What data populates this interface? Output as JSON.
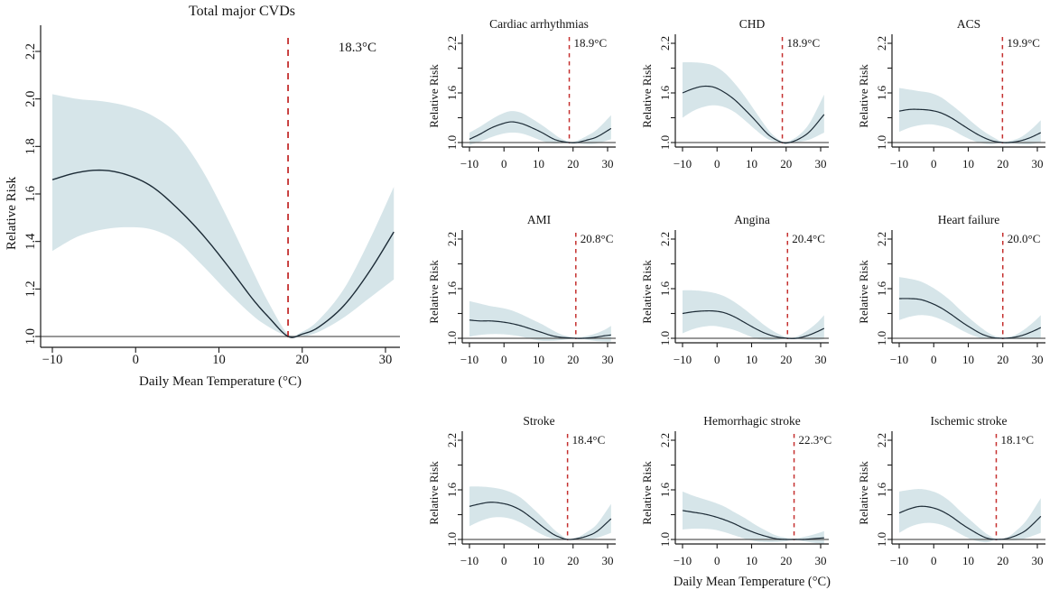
{
  "figure": {
    "xlabel": "Daily Mean Temperature (°C)",
    "ylabel": "Relative Risk",
    "colors": {
      "band": "#d6e5e9",
      "curve": "#1c2b36",
      "mmt_line": "#c5302f",
      "axis": "#1a1a1a",
      "ref_line": "#5a5a5a",
      "text": "#141414"
    },
    "x_ticks": [
      -10,
      0,
      10,
      20,
      30
    ]
  },
  "chart_data": [
    {
      "type": "line",
      "size": "large",
      "title": "Total major CVDs",
      "mmt": 18.3,
      "mmt_label": "18.3°C",
      "xlabel": "Daily Mean Temperature (°C)",
      "ylabel": "Relative Risk",
      "x_ticks": [
        -10,
        0,
        10,
        20,
        30
      ],
      "y_ticks": [
        1.0,
        1.2,
        1.4,
        1.6,
        1.8,
        2.0,
        2.2
      ],
      "y_tick_labels": [
        1.0,
        1.2,
        1.4,
        1.6,
        1.8,
        2.0,
        2.2
      ],
      "ylim": [
        1.0,
        2.2
      ],
      "x": [
        -10,
        -7,
        -4,
        -1,
        2,
        5,
        8,
        11,
        14,
        16,
        18.3,
        20,
        22,
        25,
        28,
        31
      ],
      "rr": [
        1.66,
        1.69,
        1.7,
        1.68,
        1.63,
        1.54,
        1.43,
        1.3,
        1.16,
        1.08,
        1.0,
        1.01,
        1.04,
        1.13,
        1.27,
        1.44
      ],
      "lower": [
        1.36,
        1.42,
        1.45,
        1.46,
        1.45,
        1.4,
        1.3,
        1.19,
        1.09,
        1.04,
        1.0,
        1.0,
        1.02,
        1.08,
        1.16,
        1.24
      ],
      "upper": [
        2.02,
        2.0,
        1.99,
        1.97,
        1.93,
        1.85,
        1.7,
        1.5,
        1.28,
        1.14,
        1.01,
        1.02,
        1.07,
        1.2,
        1.4,
        1.63
      ]
    },
    {
      "type": "line",
      "size": "small",
      "title": "Cardiac arrhythmias",
      "mmt": 18.9,
      "mmt_label": "18.9°C",
      "ylabel": "Relative Risk",
      "x_ticks": [
        -10,
        0,
        10,
        20,
        30
      ],
      "y_ticks": [
        1.0,
        1.3,
        1.6,
        1.9,
        2.2
      ],
      "y_tick_labels": [
        1.0,
        1.6,
        2.2
      ],
      "ylim": [
        1.0,
        2.2
      ],
      "x": [
        -10,
        -7,
        -4,
        -1,
        2,
        5,
        8,
        11,
        14,
        16,
        18.9,
        21,
        24,
        27,
        31
      ],
      "rr": [
        1.04,
        1.1,
        1.17,
        1.22,
        1.25,
        1.23,
        1.18,
        1.12,
        1.05,
        1.02,
        1.0,
        1.0,
        1.03,
        1.07,
        1.17
      ],
      "lower": [
        0.97,
        1.01,
        1.06,
        1.1,
        1.12,
        1.11,
        1.07,
        1.02,
        0.99,
        0.99,
        1.0,
        0.99,
        0.98,
        0.99,
        1.04
      ],
      "upper": [
        1.12,
        1.19,
        1.27,
        1.34,
        1.38,
        1.36,
        1.29,
        1.21,
        1.12,
        1.06,
        1.01,
        1.02,
        1.08,
        1.16,
        1.33
      ]
    },
    {
      "type": "line",
      "size": "small",
      "title": "CHD",
      "mmt": 18.9,
      "mmt_label": "18.9°C",
      "ylabel": "Relative Risk",
      "x_ticks": [
        -10,
        0,
        10,
        20,
        30
      ],
      "y_ticks": [
        1.0,
        1.3,
        1.6,
        1.9,
        2.2
      ],
      "y_tick_labels": [
        1.0,
        1.6,
        2.2
      ],
      "ylim": [
        1.0,
        2.2
      ],
      "x": [
        -10,
        -7,
        -4,
        -1,
        2,
        5,
        8,
        11,
        14,
        16,
        18.9,
        21,
        24,
        27,
        31
      ],
      "rr": [
        1.6,
        1.65,
        1.68,
        1.67,
        1.61,
        1.52,
        1.4,
        1.27,
        1.13,
        1.06,
        1.0,
        1.0,
        1.05,
        1.14,
        1.34
      ],
      "lower": [
        1.3,
        1.38,
        1.43,
        1.45,
        1.43,
        1.37,
        1.27,
        1.16,
        1.06,
        1.02,
        1.0,
        1.0,
        1.01,
        1.04,
        1.12
      ],
      "upper": [
        1.97,
        1.97,
        1.96,
        1.93,
        1.85,
        1.72,
        1.56,
        1.38,
        1.2,
        1.1,
        1.01,
        1.02,
        1.1,
        1.25,
        1.58
      ]
    },
    {
      "type": "line",
      "size": "small",
      "title": "ACS",
      "mmt": 19.9,
      "mmt_label": "19.9°C",
      "ylabel": "Relative Risk",
      "x_ticks": [
        -10,
        0,
        10,
        20,
        30
      ],
      "y_ticks": [
        1.0,
        1.3,
        1.6,
        1.9,
        2.2
      ],
      "y_tick_labels": [
        1.0,
        1.6,
        2.2
      ],
      "ylim": [
        1.0,
        2.2
      ],
      "x": [
        -10,
        -7,
        -4,
        -1,
        2,
        5,
        8,
        11,
        14,
        17,
        19.9,
        22,
        25,
        28,
        31
      ],
      "rr": [
        1.38,
        1.4,
        1.4,
        1.39,
        1.36,
        1.3,
        1.22,
        1.14,
        1.07,
        1.02,
        1.0,
        1.0,
        1.02,
        1.06,
        1.12
      ],
      "lower": [
        1.13,
        1.18,
        1.21,
        1.22,
        1.2,
        1.16,
        1.09,
        1.03,
        0.99,
        0.98,
        1.0,
        0.99,
        0.98,
        0.98,
        1.0
      ],
      "upper": [
        1.66,
        1.64,
        1.62,
        1.6,
        1.55,
        1.46,
        1.36,
        1.25,
        1.15,
        1.07,
        1.01,
        1.02,
        1.06,
        1.15,
        1.27
      ]
    },
    {
      "type": "line",
      "size": "small",
      "title": "AMI",
      "mmt": 20.8,
      "mmt_label": "20.8°C",
      "ylabel": "Relative Risk",
      "x_ticks": [
        -10,
        0,
        10,
        20,
        30
      ],
      "y_ticks": [
        1.0,
        1.3,
        1.6,
        1.9,
        2.2
      ],
      "y_tick_labels": [
        1.0,
        1.6,
        2.2
      ],
      "ylim": [
        1.0,
        2.2
      ],
      "x": [
        -10,
        -7,
        -4,
        -1,
        2,
        5,
        8,
        11,
        14,
        17,
        20.8,
        23,
        26,
        29,
        31
      ],
      "rr": [
        1.22,
        1.21,
        1.21,
        1.2,
        1.18,
        1.15,
        1.11,
        1.07,
        1.03,
        1.01,
        1.0,
        1.0,
        1.01,
        1.03,
        1.04
      ],
      "lower": [
        1.02,
        1.04,
        1.05,
        1.05,
        1.04,
        1.02,
        0.99,
        0.97,
        0.97,
        0.98,
        1.0,
        0.99,
        0.97,
        0.96,
        0.96
      ],
      "upper": [
        1.45,
        1.42,
        1.39,
        1.37,
        1.34,
        1.29,
        1.23,
        1.17,
        1.1,
        1.04,
        1.01,
        1.02,
        1.05,
        1.1,
        1.15
      ]
    },
    {
      "type": "line",
      "size": "small",
      "title": "Angina",
      "mmt": 20.4,
      "mmt_label": "20.4°C",
      "ylabel": "Relative Risk",
      "x_ticks": [
        -10,
        0,
        10,
        20,
        30
      ],
      "y_ticks": [
        1.0,
        1.3,
        1.6,
        1.9,
        2.2
      ],
      "y_tick_labels": [
        1.0,
        1.6,
        2.2
      ],
      "ylim": [
        1.0,
        2.2
      ],
      "x": [
        -10,
        -7,
        -4,
        -1,
        2,
        5,
        8,
        11,
        14,
        17,
        20.4,
        23,
        26,
        29,
        31
      ],
      "rr": [
        1.3,
        1.32,
        1.33,
        1.33,
        1.31,
        1.26,
        1.19,
        1.12,
        1.06,
        1.02,
        1.0,
        1.0,
        1.03,
        1.08,
        1.12
      ],
      "lower": [
        1.06,
        1.11,
        1.14,
        1.15,
        1.13,
        1.1,
        1.05,
        1.0,
        0.98,
        0.98,
        1.0,
        0.99,
        0.98,
        0.98,
        0.99
      ],
      "upper": [
        1.58,
        1.58,
        1.57,
        1.55,
        1.51,
        1.44,
        1.35,
        1.25,
        1.15,
        1.07,
        1.01,
        1.02,
        1.09,
        1.19,
        1.28
      ]
    },
    {
      "type": "line",
      "size": "small",
      "title": "Heart failure",
      "mmt": 20.0,
      "mmt_label": "20.0°C",
      "ylabel": "Relative Risk",
      "x_ticks": [
        -10,
        0,
        10,
        20,
        30
      ],
      "y_ticks": [
        1.0,
        1.3,
        1.6,
        1.9,
        2.2
      ],
      "y_tick_labels": [
        1.0,
        1.6,
        2.2
      ],
      "ylim": [
        1.0,
        2.2
      ],
      "x": [
        -10,
        -7,
        -4,
        -1,
        2,
        5,
        8,
        11,
        14,
        17,
        20,
        23,
        26,
        29,
        31
      ],
      "rr": [
        1.48,
        1.48,
        1.47,
        1.43,
        1.37,
        1.29,
        1.2,
        1.12,
        1.05,
        1.01,
        1.0,
        1.01,
        1.04,
        1.09,
        1.13
      ],
      "lower": [
        1.22,
        1.26,
        1.28,
        1.27,
        1.23,
        1.17,
        1.1,
        1.04,
        1.0,
        0.99,
        1.0,
        0.99,
        0.99,
        1.0,
        1.0
      ],
      "upper": [
        1.74,
        1.72,
        1.69,
        1.63,
        1.55,
        1.45,
        1.33,
        1.22,
        1.12,
        1.04,
        1.01,
        1.03,
        1.1,
        1.2,
        1.28
      ]
    },
    {
      "type": "line",
      "size": "small",
      "title": "Stroke",
      "mmt": 18.4,
      "mmt_label": "18.4°C",
      "ylabel": "Relative Risk",
      "x_ticks": [
        -10,
        0,
        10,
        20,
        30
      ],
      "y_ticks": [
        1.0,
        1.3,
        1.6,
        1.9,
        2.2
      ],
      "y_tick_labels": [
        1.0,
        1.6,
        2.2
      ],
      "ylim": [
        1.0,
        2.2
      ],
      "x": [
        -10,
        -7,
        -4,
        -1,
        2,
        5,
        8,
        11,
        14,
        16,
        18.4,
        21,
        24,
        27,
        31
      ],
      "rr": [
        1.4,
        1.43,
        1.45,
        1.44,
        1.41,
        1.35,
        1.26,
        1.16,
        1.07,
        1.03,
        1.0,
        1.01,
        1.04,
        1.1,
        1.25
      ],
      "lower": [
        1.16,
        1.22,
        1.26,
        1.27,
        1.25,
        1.2,
        1.13,
        1.06,
        1.01,
        0.99,
        1.0,
        1.0,
        1.0,
        1.02,
        1.08
      ],
      "upper": [
        1.64,
        1.64,
        1.63,
        1.61,
        1.57,
        1.5,
        1.39,
        1.27,
        1.14,
        1.07,
        1.01,
        1.02,
        1.09,
        1.19,
        1.43
      ]
    },
    {
      "type": "line",
      "size": "small",
      "title": "Hemorrhagic stroke",
      "mmt": 22.3,
      "mmt_label": "22.3°C",
      "ylabel": "Relative Risk",
      "x_ticks": [
        -10,
        0,
        10,
        20,
        30
      ],
      "y_ticks": [
        1.0,
        1.3,
        1.6,
        1.9,
        2.2
      ],
      "y_tick_labels": [
        1.0,
        1.6,
        2.2
      ],
      "ylim": [
        1.0,
        2.2
      ],
      "x": [
        -10,
        -7,
        -4,
        -1,
        2,
        5,
        8,
        11,
        14,
        17,
        20,
        22.3,
        25,
        28,
        31
      ],
      "rr": [
        1.35,
        1.33,
        1.31,
        1.28,
        1.24,
        1.19,
        1.13,
        1.08,
        1.04,
        1.01,
        1.0,
        1.0,
        1.0,
        1.01,
        1.02
      ],
      "lower": [
        1.12,
        1.13,
        1.13,
        1.12,
        1.09,
        1.05,
        1.01,
        0.98,
        0.97,
        0.97,
        0.98,
        1.0,
        0.98,
        0.96,
        0.95
      ],
      "upper": [
        1.58,
        1.53,
        1.49,
        1.45,
        1.4,
        1.33,
        1.26,
        1.18,
        1.11,
        1.05,
        1.02,
        1.01,
        1.03,
        1.06,
        1.1
      ]
    },
    {
      "type": "line",
      "size": "small",
      "title": "Ischemic stroke",
      "mmt": 18.1,
      "mmt_label": "18.1°C",
      "ylabel": "Relative Risk",
      "x_ticks": [
        -10,
        0,
        10,
        20,
        30
      ],
      "y_ticks": [
        1.0,
        1.3,
        1.6,
        1.9,
        2.2
      ],
      "y_tick_labels": [
        1.0,
        1.6,
        2.2
      ],
      "ylim": [
        1.0,
        2.2
      ],
      "x": [
        -10,
        -7,
        -4,
        -1,
        2,
        5,
        8,
        11,
        14,
        16,
        18.1,
        21,
        24,
        27,
        31
      ],
      "rr": [
        1.32,
        1.37,
        1.4,
        1.39,
        1.35,
        1.28,
        1.19,
        1.11,
        1.04,
        1.01,
        1.0,
        1.01,
        1.05,
        1.12,
        1.28
      ],
      "lower": [
        1.08,
        1.15,
        1.19,
        1.2,
        1.18,
        1.13,
        1.06,
        1.0,
        0.97,
        0.97,
        1.0,
        0.99,
        0.99,
        1.02,
        1.08
      ],
      "upper": [
        1.58,
        1.6,
        1.61,
        1.59,
        1.54,
        1.45,
        1.33,
        1.22,
        1.11,
        1.05,
        1.01,
        1.02,
        1.11,
        1.24,
        1.5
      ]
    }
  ]
}
